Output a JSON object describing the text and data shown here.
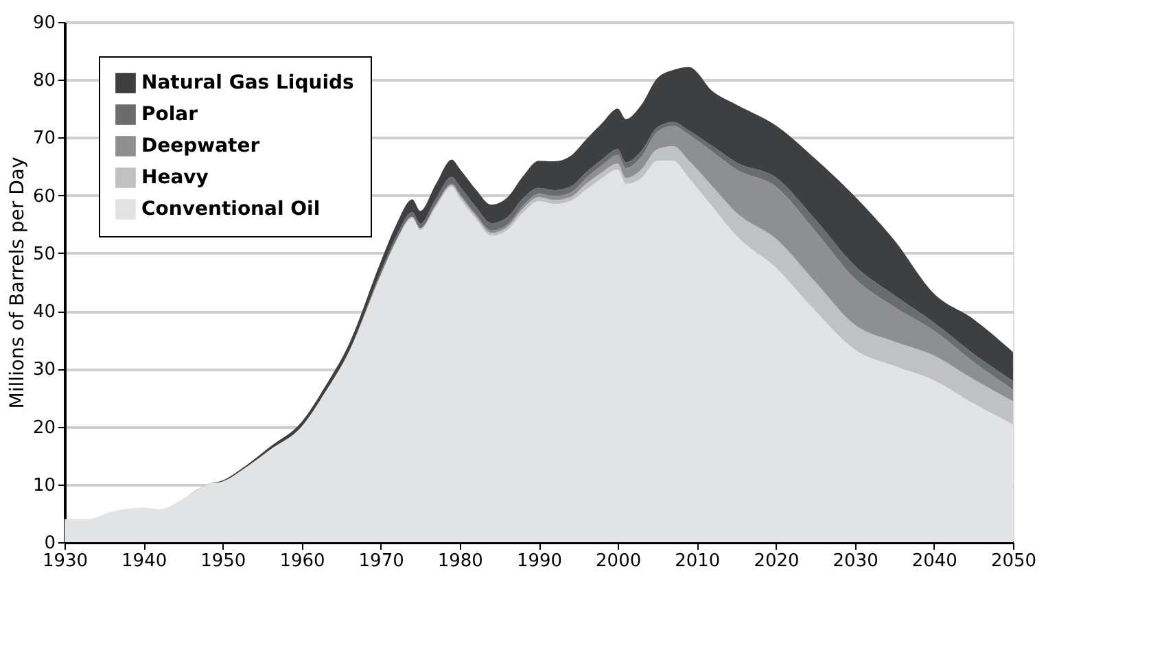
{
  "chart_data": {
    "type": "area",
    "stacked": true,
    "ylabel": "Millions of Barrels per Day",
    "x": [
      1930,
      1933,
      1936,
      1940,
      1942,
      1945,
      1948,
      1950,
      1953,
      1956,
      1960,
      1963,
      1966,
      1970,
      1972,
      1974,
      1975,
      1977,
      1979,
      1980,
      1982,
      1984,
      1986,
      1988,
      1990,
      1992,
      1994,
      1996,
      1998,
      2000,
      2001,
      2003,
      2005,
      2007,
      2009,
      2012,
      2015,
      2020,
      2025,
      2030,
      2035,
      2040,
      2045,
      2050
    ],
    "series": [
      {
        "name": "Conventional Oil",
        "color": "#e2e3e5",
        "values": [
          4,
          4,
          5.3,
          6,
          5.7,
          7.5,
          10,
          10.5,
          13,
          16,
          20,
          26,
          33,
          46,
          52,
          56,
          54,
          58,
          61.5,
          59.5,
          56,
          53,
          54,
          57,
          59,
          58.5,
          59,
          61,
          63,
          64.5,
          62,
          63,
          66,
          66,
          63,
          58,
          53,
          47.5,
          40,
          33.3,
          30.5,
          28,
          24,
          20.4
        ]
      },
      {
        "name": "Heavy",
        "color": "#c0c1c3",
        "values": [
          0,
          0,
          0,
          0,
          0,
          0,
          0,
          0,
          0,
          0,
          0,
          0,
          0,
          0.3,
          0.3,
          0.3,
          0.3,
          0.3,
          0.3,
          0.5,
          0.5,
          0.5,
          0.5,
          0.7,
          0.7,
          0.7,
          0.7,
          1,
          1,
          1,
          1,
          1.5,
          2,
          2.5,
          3,
          3.5,
          4,
          5,
          5,
          4.3,
          4.2,
          4.3,
          4.2,
          4
        ]
      },
      {
        "name": "Deepwater",
        "color": "#8e8f92",
        "values": [
          0,
          0,
          0,
          0,
          0,
          0,
          0,
          0,
          0,
          0,
          0,
          0,
          0,
          0,
          0,
          0,
          0,
          0.2,
          0.2,
          0.3,
          0.3,
          0.4,
          0.4,
          0.5,
          0.6,
          0.7,
          0.8,
          1,
          1.2,
          1.5,
          1.7,
          2.2,
          3,
          3.5,
          4.5,
          6,
          7.5,
          9,
          8.8,
          8,
          6,
          4.3,
          3,
          2
        ]
      },
      {
        "name": "Polar",
        "color": "#6b6c6f",
        "values": [
          0,
          0,
          0,
          0,
          0,
          0,
          0,
          0,
          0,
          0,
          0,
          0,
          0,
          0.5,
          0.7,
          0.8,
          0.8,
          1,
          1.2,
          1.3,
          1.3,
          1.3,
          1.3,
          1.3,
          1,
          1,
          1,
          1,
          1,
          1,
          1,
          1,
          0.8,
          0.7,
          0.7,
          1,
          1.2,
          1.6,
          2,
          2.2,
          2,
          1.4,
          1.4,
          1.5
        ]
      },
      {
        "name": "Natural Gas Liquids",
        "color": "#3e3f41",
        "values": [
          0,
          0,
          0,
          0,
          0,
          0,
          0,
          0.2,
          0.3,
          0.5,
          0.8,
          1,
          1.3,
          1.7,
          2,
          2.2,
          2.2,
          2.5,
          3,
          3,
          3,
          3.2,
          3.4,
          3.8,
          4.7,
          5,
          5.3,
          5.7,
          6.3,
          7,
          7.5,
          8,
          8.5,
          9,
          11,
          9.5,
          10,
          9,
          10.5,
          12,
          9.5,
          5,
          6,
          5
        ]
      }
    ],
    "xlim": [
      1930,
      2050
    ],
    "xticks": [
      1930,
      1940,
      1950,
      1960,
      1970,
      1980,
      1990,
      2000,
      2010,
      2020,
      2030,
      2040,
      2050
    ],
    "ylim": [
      0,
      90
    ],
    "yticks": [
      0,
      10,
      20,
      30,
      40,
      50,
      60,
      70,
      80,
      90
    ],
    "grid": "y",
    "legend": "top left"
  }
}
